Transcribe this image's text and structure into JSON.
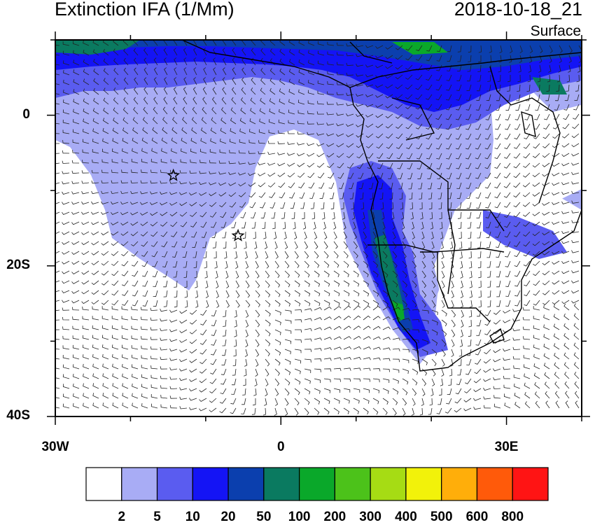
{
  "header": {
    "title": "Extinction IFA (1/Mm)",
    "timestamp": "2018-10-18_21",
    "level": "Surface"
  },
  "axes": {
    "lat_labels": [
      "0",
      "20S",
      "40S"
    ],
    "lat_values": [
      0,
      -20,
      -40
    ],
    "lon_labels": [
      "30W",
      "0",
      "30E"
    ],
    "lon_values": [
      -30,
      0,
      30
    ],
    "lon_range": [
      -30,
      40
    ],
    "lat_range": [
      -40,
      10
    ]
  },
  "colorbar": {
    "labels": [
      "2",
      "5",
      "10",
      "20",
      "50",
      "100",
      "200",
      "300",
      "400",
      "500",
      "600",
      "800"
    ],
    "colors": [
      "#ffffff",
      "#a8acf5",
      "#5a5cf0",
      "#1414f5",
      "#0b3fae",
      "#0a7a60",
      "#0aa82a",
      "#4cc21a",
      "#a6dc14",
      "#f2f20a",
      "#ffae0a",
      "#ff5a0a",
      "#ff1414"
    ]
  },
  "markers": [
    {
      "name": "star-marker",
      "lon": -14.3,
      "lat": -8.0
    },
    {
      "name": "star-marker",
      "lon": -5.7,
      "lat": -16.0
    }
  ]
}
